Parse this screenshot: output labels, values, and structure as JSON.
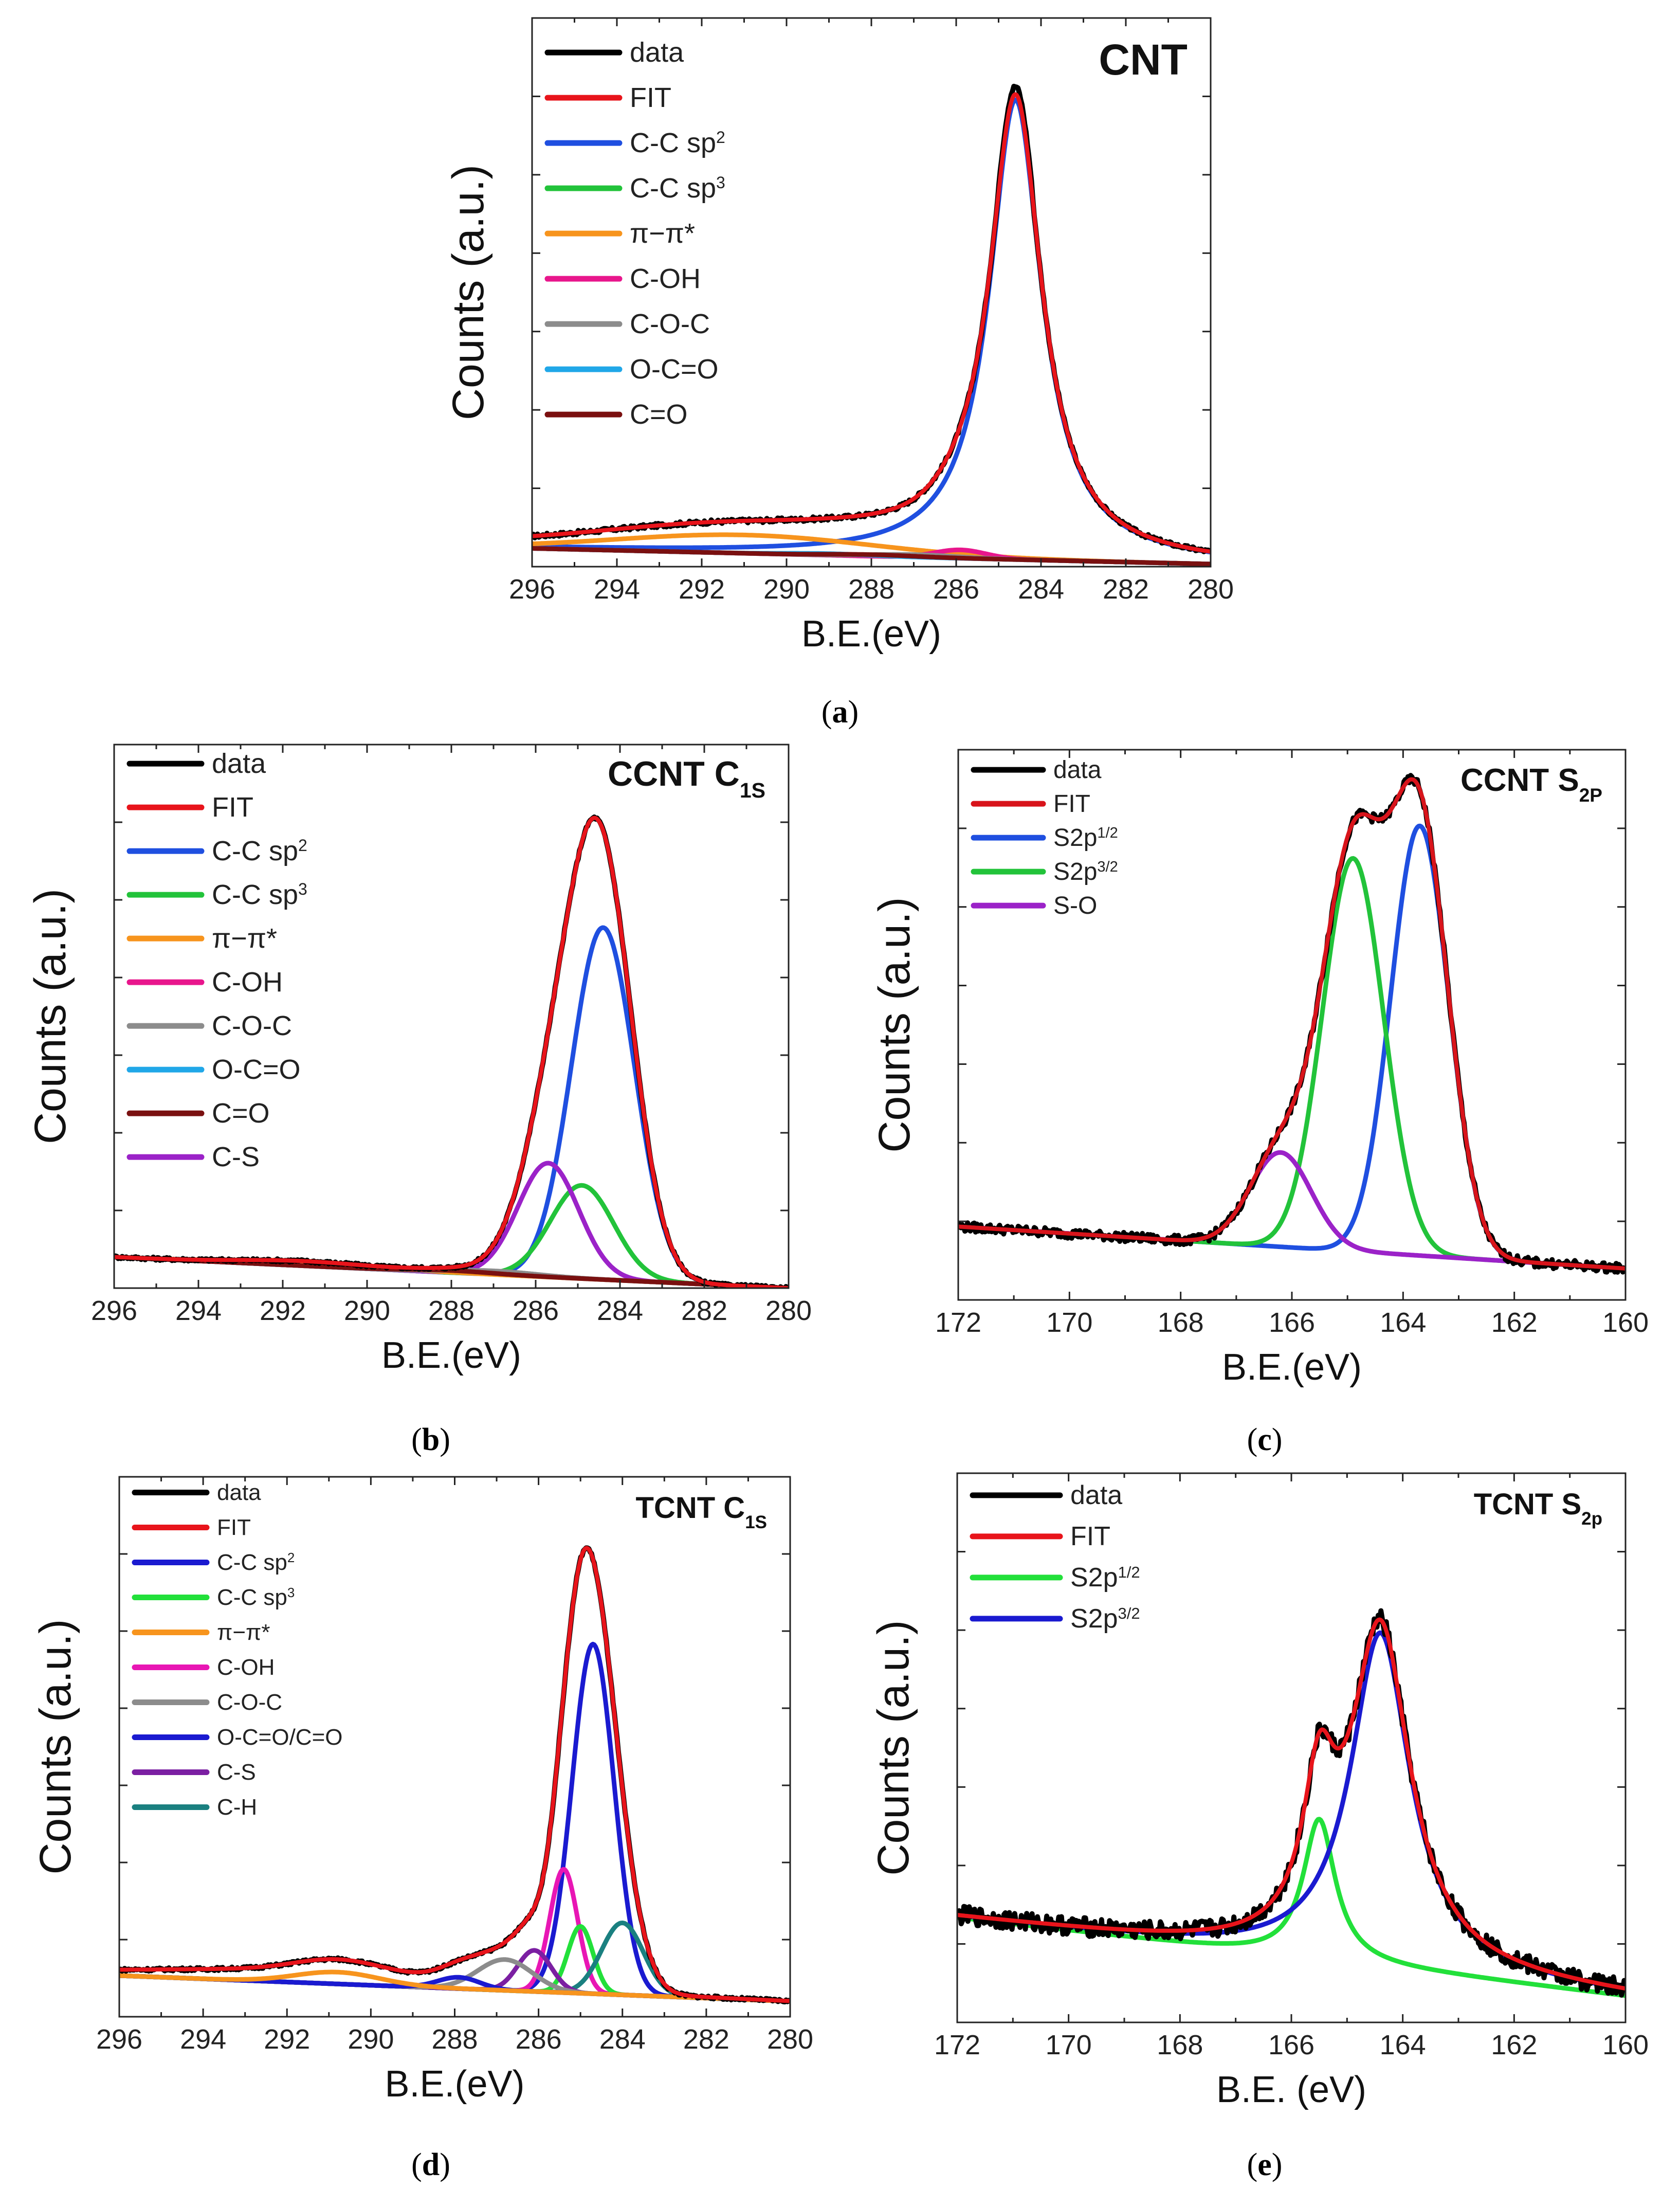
{
  "figure": {
    "panels": [
      {
        "id": "a",
        "label_open": "(",
        "label_letter": "a",
        "label_close": ")"
      },
      {
        "id": "b",
        "label_open": "(",
        "label_letter": "b",
        "label_close": ")"
      },
      {
        "id": "c",
        "label_open": "(",
        "label_letter": "c",
        "label_close": ")"
      },
      {
        "id": "d",
        "label_open": "(",
        "label_letter": "d",
        "label_close": ")"
      },
      {
        "id": "e",
        "label_open": "(",
        "label_letter": "e",
        "label_close": ")"
      }
    ]
  },
  "chart_data": [
    {
      "panel": "a",
      "type": "line",
      "title": "CNT",
      "title_sub": "",
      "xlabel": "B.E.(eV)",
      "ylabel": "Counts (a.u.)",
      "xlim": [
        296,
        280
      ],
      "ylim": [
        0,
        105
      ],
      "xticks": [
        296,
        294,
        292,
        290,
        288,
        286,
        284,
        282,
        280
      ],
      "baseline": {
        "start": 3.5,
        "end": 0.5
      },
      "legend": [
        {
          "name": "data",
          "color": "#000000",
          "sup": ""
        },
        {
          "name": "FIT",
          "color": "#e8141b",
          "sup": ""
        },
        {
          "name": "C-C sp",
          "color": "#1f4fe0",
          "sup": "2"
        },
        {
          "name": "C-C sp",
          "color": "#22c33a",
          "sup": "3"
        },
        {
          "name": "π−π*",
          "color": "#f7941d",
          "sup": ""
        },
        {
          "name": "C-OH",
          "color": "#e8168c",
          "sup": ""
        },
        {
          "name": "C-O-C",
          "color": "#8c8c8c",
          "sup": ""
        },
        {
          "name": "O-C=O",
          "color": "#20a7e8",
          "sup": ""
        },
        {
          "name": "C=O",
          "color": "#7a1010",
          "sup": ""
        }
      ],
      "components": [
        {
          "name": "C-C sp2",
          "color": "#1f4fe0",
          "center": 284.6,
          "height": 88,
          "width": 0.75,
          "shape": "lor"
        },
        {
          "name": "π−π*",
          "color": "#f7941d",
          "center": 291.0,
          "height": 3.5,
          "width": 3.0,
          "shape": "gauss"
        },
        {
          "name": "C-OH",
          "color": "#e8168c",
          "center": 285.9,
          "height": 1.6,
          "width": 0.6,
          "shape": "gauss"
        },
        {
          "name": "C-O-C",
          "color": "#8c8c8c",
          "center": 287.0,
          "height": 0.5,
          "width": 1.0,
          "shape": "gauss"
        },
        {
          "name": "O-C=O",
          "color": "#20a7e8",
          "center": 289.0,
          "height": 0.3,
          "width": 1.0,
          "shape": "gauss"
        },
        {
          "name": "C=O",
          "color": "#7a1010",
          "center": 288.0,
          "height": 0.3,
          "width": 1.0,
          "shape": "gauss"
        }
      ],
      "fit_extra": {
        "center": 292,
        "height": 1.5,
        "width": 5
      },
      "data_noise": 0.4
    },
    {
      "panel": "b",
      "type": "line",
      "title": "CCNT C",
      "title_sub": "1S",
      "xlabel": "B.E.(eV)",
      "ylabel": "Counts (a.u.)",
      "xlim": [
        296,
        280
      ],
      "ylim": [
        0,
        105
      ],
      "xticks": [
        296,
        294,
        292,
        290,
        288,
        286,
        284,
        282,
        280
      ],
      "baseline": {
        "start": 6,
        "end": 0
      },
      "legend": [
        {
          "name": "data",
          "color": "#000000",
          "sup": ""
        },
        {
          "name": "FIT",
          "color": "#e8141b",
          "sup": ""
        },
        {
          "name": "C-C sp",
          "color": "#1f4fe0",
          "sup": "2"
        },
        {
          "name": "C-C sp",
          "color": "#22c33a",
          "sup": "3"
        },
        {
          "name": "π−π*",
          "color": "#f7941d",
          "sup": ""
        },
        {
          "name": "C-OH",
          "color": "#e8168c",
          "sup": ""
        },
        {
          "name": "C-O-C",
          "color": "#8c8c8c",
          "sup": ""
        },
        {
          "name": "O-C=O",
          "color": "#20a7e8",
          "sup": ""
        },
        {
          "name": "C=O",
          "color": "#7a1010",
          "sup": ""
        },
        {
          "name": "C-S",
          "color": "#9b22c8",
          "sup": ""
        }
      ],
      "components": [
        {
          "name": "C-C sp2",
          "color": "#1f4fe0",
          "center": 284.4,
          "height": 68,
          "width": 0.75,
          "shape": "gauss"
        },
        {
          "name": "C-C sp3",
          "color": "#22c33a",
          "center": 284.9,
          "height": 18,
          "width": 0.75,
          "shape": "gauss"
        },
        {
          "name": "C-S",
          "color": "#9b22c8",
          "center": 285.7,
          "height": 22,
          "width": 0.72,
          "shape": "gauss"
        },
        {
          "name": "π−π*",
          "color": "#f7941d",
          "center": 291.5,
          "height": 0.9,
          "width": 1.5,
          "shape": "gauss"
        },
        {
          "name": "C-O-C",
          "color": "#8c8c8c",
          "center": 287,
          "height": 0.7,
          "width": 1,
          "shape": "gauss"
        },
        {
          "name": "C=O",
          "color": "#7a1010",
          "center": 288,
          "height": 0.4,
          "width": 1,
          "shape": "gauss"
        }
      ],
      "fit_extra": null,
      "data_noise": 0.3
    },
    {
      "panel": "c",
      "type": "line",
      "title": "CCNT S",
      "title_sub": "2P",
      "xlabel": "B.E.(eV)",
      "ylabel": "Counts (a.u.)",
      "xlim": [
        172,
        160
      ],
      "ylim": [
        0,
        105
      ],
      "xticks": [
        172,
        170,
        168,
        166,
        164,
        162,
        160
      ],
      "baseline": {
        "start": 14,
        "end": 6
      },
      "legend": [
        {
          "name": "data",
          "color": "#000000",
          "sup": ""
        },
        {
          "name": "FIT",
          "color": "#d8141b",
          "sup": ""
        },
        {
          "name": "S2p",
          "color": "#1f4fe0",
          "sup": "1/2"
        },
        {
          "name": "S2p",
          "color": "#22c33a",
          "sup": "3/2"
        },
        {
          "name": "S-O",
          "color": "#9b22c8",
          "sup": ""
        }
      ],
      "components": [
        {
          "name": "S2p1/2",
          "color": "#1f4fe0",
          "center": 163.7,
          "height": 82,
          "width": 0.52,
          "shape": "gauss"
        },
        {
          "name": "S2p3/2",
          "color": "#22c33a",
          "center": 164.9,
          "height": 75,
          "width": 0.55,
          "shape": "gauss"
        },
        {
          "name": "S-O",
          "color": "#9b22c8",
          "center": 166.2,
          "height": 18,
          "width": 0.55,
          "shape": "gauss"
        }
      ],
      "fit_extra": null,
      "data_noise": 0.9
    },
    {
      "panel": "d",
      "type": "line",
      "title": "TCNT C",
      "title_sub": "1S",
      "xlabel": "B.E.(eV)",
      "ylabel": "Counts (a.u.)",
      "xlim": [
        296,
        280
      ],
      "ylim": [
        0,
        105
      ],
      "xticks": [
        296,
        294,
        292,
        290,
        288,
        286,
        284,
        282,
        280
      ],
      "baseline": {
        "start": 8,
        "end": 3
      },
      "legend": [
        {
          "name": "data",
          "color": "#000000",
          "sup": ""
        },
        {
          "name": "FIT",
          "color": "#e8141b",
          "sup": ""
        },
        {
          "name": "C-C sp",
          "color": "#1a1ad0",
          "sup": "2"
        },
        {
          "name": "C-C sp",
          "color": "#22e03a",
          "sup": "3"
        },
        {
          "name": "π−π*",
          "color": "#f7941d",
          "sup": ""
        },
        {
          "name": "C-OH",
          "color": "#e816b4",
          "sup": ""
        },
        {
          "name": "C-O-C",
          "color": "#8c8c8c",
          "sup": ""
        },
        {
          "name": "O-C=O/C=O",
          "color": "#1a1ad0",
          "sup": ""
        },
        {
          "name": "C-S",
          "color": "#7b1fa2",
          "sup": ""
        },
        {
          "name": "C-H",
          "color": "#1a8080",
          "sup": ""
        }
      ],
      "components": [
        {
          "name": "C-C sp2",
          "color": "#1a1ad0",
          "center": 284.7,
          "height": 68,
          "width": 0.5,
          "shape": "gauss"
        },
        {
          "name": "C-OH",
          "color": "#e816b4",
          "center": 285.4,
          "height": 24,
          "width": 0.33,
          "shape": "gauss"
        },
        {
          "name": "C-C sp3",
          "color": "#22e03a",
          "center": 285.0,
          "height": 13,
          "width": 0.3,
          "shape": "gauss"
        },
        {
          "name": "C-H",
          "color": "#1a8080",
          "center": 284.0,
          "height": 14,
          "width": 0.5,
          "shape": "gauss"
        },
        {
          "name": "C-S",
          "color": "#7b1fa2",
          "center": 286.1,
          "height": 8,
          "width": 0.4,
          "shape": "gauss"
        },
        {
          "name": "C-O-C",
          "color": "#8c8c8c",
          "center": 286.8,
          "height": 6,
          "width": 0.65,
          "shape": "gauss"
        },
        {
          "name": "O-C=O/C=O",
          "color": "#1a1ad0",
          "center": 287.9,
          "height": 2.2,
          "width": 0.5,
          "shape": "gauss"
        },
        {
          "name": "π−π*",
          "color": "#f7941d",
          "center": 290.8,
          "height": 2.3,
          "width": 1.0,
          "shape": "gauss"
        }
      ],
      "fit_extra": {
        "center": 291,
        "height": 2.5,
        "width": 4
      },
      "data_noise": 0.3
    },
    {
      "panel": "e",
      "type": "line",
      "title": "TCNT S",
      "title_sub": "2p",
      "xlabel": "B.E. (eV)",
      "ylabel": "Counts (a.u.)",
      "xlim": [
        172,
        160
      ],
      "ylim": [
        0,
        105
      ],
      "xticks": [
        172,
        170,
        168,
        166,
        164,
        162,
        160
      ],
      "baseline": {
        "start": 20,
        "end": 5
      },
      "legend": [
        {
          "name": "data",
          "color": "#000000",
          "sup": ""
        },
        {
          "name": "FIT",
          "color": "#e8141b",
          "sup": ""
        },
        {
          "name": "S2p",
          "color": "#22e03a",
          "sup": "1/2"
        },
        {
          "name": "S2p",
          "color": "#1a1ad0",
          "sup": "3/2"
        }
      ],
      "components": [
        {
          "name": "S2p1/2",
          "color": "#22e03a",
          "center": 165.5,
          "height": 27,
          "width": 0.35,
          "shape": "lor"
        },
        {
          "name": "S2p3/2",
          "color": "#1a1ad0",
          "center": 164.4,
          "height": 64,
          "width": 0.65,
          "shape": "lor"
        }
      ],
      "fit_extra": null,
      "data_noise": 1.8
    }
  ]
}
